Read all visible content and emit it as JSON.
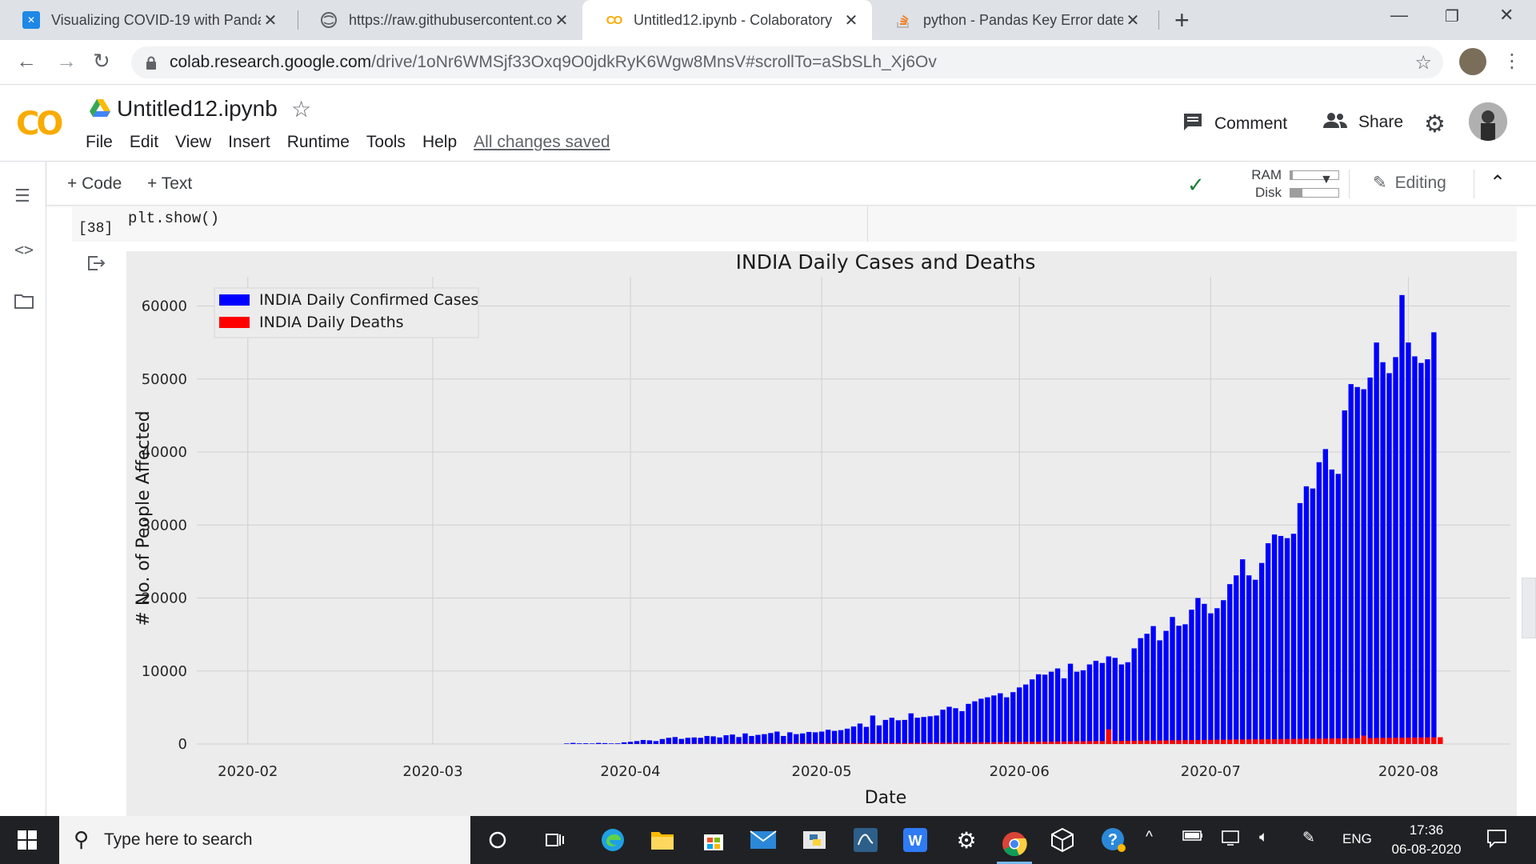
{
  "browser": {
    "tabs": [
      {
        "title": "Visualizing COVID-19 with Panda",
        "icon": "x-square-icon"
      },
      {
        "title": "https://raw.githubusercontent.co",
        "icon": "globe-icon"
      },
      {
        "title": "Untitled12.ipynb - Colaboratory",
        "icon": "colab-icon"
      },
      {
        "title": "python - Pandas Key Error date -",
        "icon": "stackoverflow-icon"
      }
    ],
    "active_tab": 2,
    "url_host": "colab.research.google.com",
    "url_path": "/drive/1oNr6WMSjf33Oxq9O0jdkRyK6Wgw8MnsV#scrollTo=aSbSLh_Xj6Ov"
  },
  "colab": {
    "logo": "CO",
    "notebook_title": "Untitled12.ipynb",
    "menus": [
      "File",
      "Edit",
      "View",
      "Insert",
      "Runtime",
      "Tools",
      "Help"
    ],
    "save_status": "All changes saved",
    "comment_label": "Comment",
    "share_label": "Share",
    "add_code_label": "Code",
    "add_text_label": "Text",
    "ram_label": "RAM",
    "disk_label": "Disk",
    "ram_usage": 0.05,
    "disk_usage": 0.25,
    "editing_label": "Editing",
    "accent_color": "#f9ab00"
  },
  "cell": {
    "exec_count": "[38]",
    "code": "plt.show()"
  },
  "chart_data": {
    "type": "bar",
    "title": "INDIA Daily Cases and Deaths",
    "xlabel": "Date",
    "ylabel": "# No. of People Affected",
    "ylim": [
      0,
      64000
    ],
    "x_ticks": [
      "2020-02",
      "2020-03",
      "2020-04",
      "2020-05",
      "2020-06",
      "2020-07",
      "2020-08"
    ],
    "y_ticks": [
      0,
      10000,
      20000,
      30000,
      40000,
      50000,
      60000
    ],
    "grid": true,
    "legend_position": "top-left",
    "start_date": "2020-03-22",
    "series": [
      {
        "name": "INDIA Daily Confirmed Cases",
        "color": "#0000ff",
        "values": [
          80,
          150,
          90,
          100,
          75,
          150,
          120,
          80,
          90,
          230,
          300,
          400,
          550,
          500,
          400,
          680,
          850,
          950,
          700,
          850,
          900,
          850,
          1100,
          1050,
          900,
          1200,
          1300,
          950,
          1450,
          1100,
          1250,
          1350,
          1500,
          1700,
          1100,
          1600,
          1350,
          1450,
          1650,
          1600,
          1700,
          1950,
          1800,
          1900,
          2100,
          2400,
          2800,
          2350,
          3900,
          2550,
          3300,
          3600,
          3250,
          3300,
          4200,
          3600,
          3700,
          3800,
          3900,
          4700,
          5100,
          4900,
          4500,
          5500,
          5850,
          6200,
          6400,
          6650,
          6950,
          6400,
          7100,
          7750,
          8150,
          8850,
          9550,
          9500,
          9900,
          10350,
          9000,
          11000,
          9900,
          10100,
          10900,
          11400,
          11100,
          12000,
          11800,
          10900,
          11200,
          13100,
          14500,
          15100,
          16150,
          14200,
          15500,
          17400,
          16200,
          16400,
          18400,
          20000,
          19200,
          17900,
          18600,
          19700,
          21900,
          23100,
          25300,
          23100,
          22500,
          24800,
          27500,
          28700,
          28500,
          28200,
          28800,
          33000,
          35300,
          35000,
          38600,
          40400,
          37600,
          37000,
          45700,
          49300,
          48900,
          48600,
          50200,
          55000,
          52300,
          50800,
          53000,
          61500,
          55000,
          53100,
          52200,
          52700,
          56400
        ],
        "values_note": ""
      },
      {
        "name": "INDIA Daily Deaths",
        "color": "#ff0000",
        "values": [
          0,
          1,
          0,
          1,
          1,
          2,
          3,
          2,
          3,
          5,
          10,
          12,
          14,
          10,
          8,
          20,
          25,
          30,
          28,
          30,
          35,
          37,
          40,
          38,
          30,
          42,
          45,
          48,
          50,
          52,
          55,
          53,
          60,
          62,
          58,
          65,
          70,
          72,
          75,
          78,
          80,
          82,
          85,
          90,
          95,
          100,
          105,
          110,
          115,
          120,
          125,
          130,
          135,
          140,
          145,
          150,
          155,
          160,
          165,
          170,
          175,
          180,
          190,
          200,
          210,
          220,
          230,
          240,
          250,
          260,
          270,
          280,
          290,
          300,
          310,
          320,
          330,
          340,
          350,
          360,
          370,
          380,
          390,
          400,
          410,
          2000,
          420,
          430,
          440,
          450,
          460,
          470,
          480,
          490,
          500,
          510,
          520,
          530,
          540,
          550,
          560,
          570,
          580,
          590,
          600,
          610,
          620,
          630,
          640,
          650,
          660,
          670,
          680,
          690,
          700,
          710,
          720,
          730,
          740,
          750,
          760,
          770,
          780,
          790,
          800,
          1150,
          820,
          830,
          840,
          850,
          860,
          870,
          880,
          890,
          900,
          910,
          920,
          930
        ]
      }
    ]
  },
  "taskbar": {
    "search_placeholder": "Type here to search",
    "language": "ENG",
    "time": "17:36",
    "date": "06-08-2020"
  }
}
